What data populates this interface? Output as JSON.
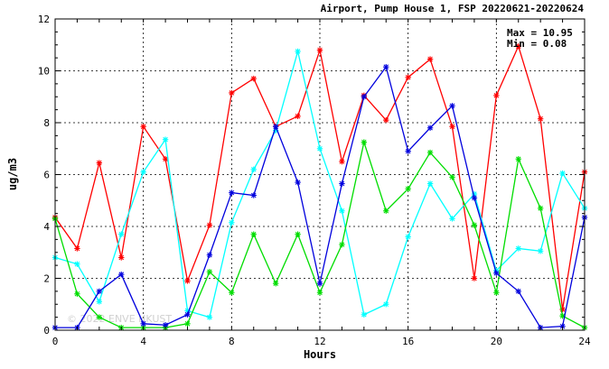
{
  "chart_data": {
    "type": "line",
    "title": "Airport, Pump House 1, FSP 20220621-20220624",
    "xlabel": "Hours",
    "ylabel": "ug/m3",
    "xlim": [
      0,
      24
    ],
    "ylim": [
      0,
      12
    ],
    "xticks": [
      0,
      4,
      8,
      12,
      16,
      20,
      24
    ],
    "yticks": [
      0,
      2,
      4,
      6,
      8,
      10,
      12
    ],
    "grid": true,
    "stats": {
      "max_label": "Max = 10.95",
      "min_label": "Min =  0.08"
    },
    "watermark": "© 2022 ENVE HKUST",
    "x": [
      0,
      1,
      2,
      3,
      4,
      5,
      6,
      7,
      8,
      9,
      10,
      11,
      12,
      13,
      14,
      15,
      16,
      17,
      18,
      19,
      20,
      21,
      22,
      23,
      24
    ],
    "series": [
      {
        "color": "#ff0000",
        "values": [
          4.35,
          3.15,
          6.45,
          2.8,
          7.85,
          6.6,
          1.9,
          4.05,
          9.15,
          9.7,
          7.85,
          8.25,
          10.8,
          6.5,
          9.05,
          8.1,
          9.75,
          10.45,
          7.85,
          2.0,
          9.05,
          10.95,
          8.15,
          0.8,
          6.1
        ]
      },
      {
        "color": "#00ffff",
        "values": [
          2.8,
          2.55,
          1.1,
          3.7,
          6.1,
          7.35,
          0.75,
          0.5,
          4.15,
          6.2,
          7.7,
          10.75,
          7.0,
          4.6,
          0.6,
          1.0,
          3.6,
          5.65,
          4.3,
          5.25,
          2.3,
          3.15,
          3.05,
          6.05,
          4.7
        ]
      },
      {
        "color": "#00dd00",
        "values": [
          4.3,
          1.4,
          0.5,
          0.1,
          0.1,
          0.1,
          0.25,
          2.25,
          1.45,
          3.7,
          1.8,
          3.7,
          1.45,
          3.3,
          7.25,
          4.6,
          5.45,
          6.85,
          5.9,
          4.05,
          1.45,
          6.6,
          4.7,
          0.55,
          0.1
        ]
      },
      {
        "color": "#0000dd",
        "values": [
          0.1,
          0.1,
          1.5,
          2.15,
          0.25,
          0.2,
          0.6,
          2.9,
          5.3,
          5.2,
          7.85,
          5.7,
          1.8,
          5.65,
          9.0,
          10.15,
          6.9,
          7.8,
          8.65,
          5.1,
          2.2,
          1.5,
          0.1,
          0.15,
          4.35
        ]
      }
    ]
  }
}
